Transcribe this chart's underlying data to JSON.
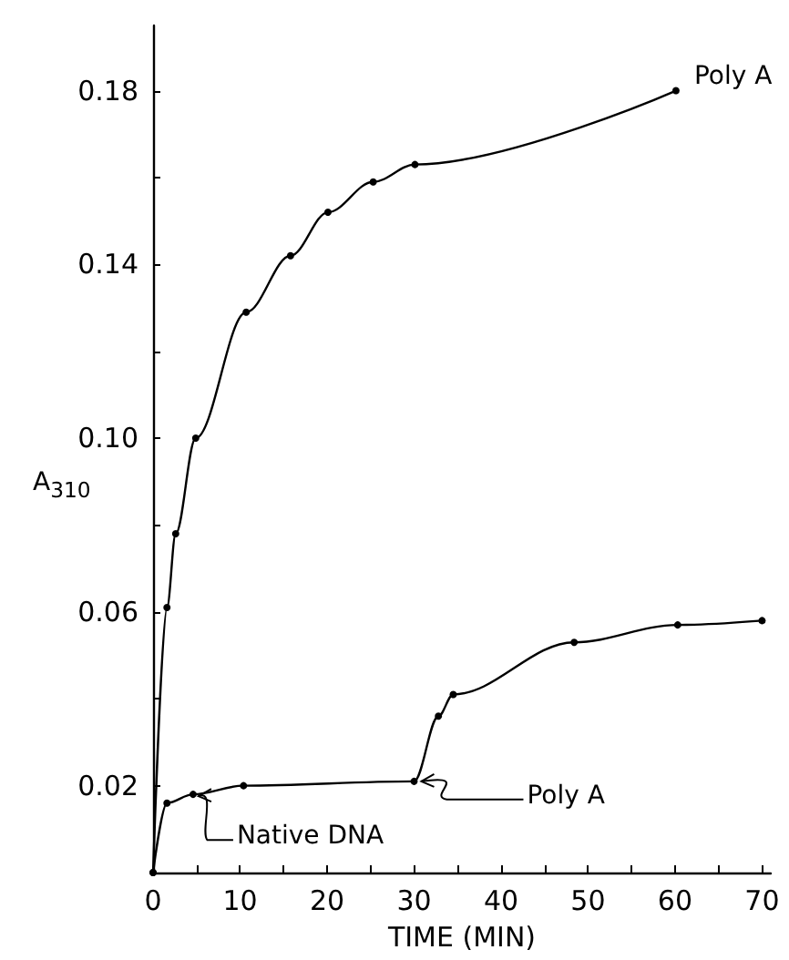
{
  "chart_data": {
    "type": "line",
    "xlabel": "TIME (MIN)",
    "ylabel": "A$_{310}$",
    "series": [
      {
        "name": "Poly A",
        "color": "#000000",
        "x": [
          0,
          1.6,
          2.6,
          4.9,
          10.7,
          15.8,
          20.1,
          25.3,
          30.1,
          60.1
        ],
        "values": [
          0,
          0.061,
          0.078,
          0.1,
          0.129,
          0.142,
          0.152,
          0.159,
          0.163,
          0.18
        ]
      },
      {
        "name": "Native DNA",
        "color": "#000000",
        "x": [
          0,
          1.6,
          4.6,
          10.4,
          30,
          32.8,
          34.5,
          48.4,
          60.3,
          70
        ],
        "values": [
          0,
          0.016,
          0.018,
          0.02,
          0.021,
          0.036,
          0.041,
          0.053,
          0.057,
          0.058
        ]
      }
    ],
    "annotations": [
      {
        "text": "Poly A",
        "x": 30,
        "y": 0.021
      }
    ],
    "xlim": [
      0,
      71
    ],
    "ylim": [
      0,
      0.195
    ],
    "xticks": [
      0,
      {
        "value": 5,
        "label": null
      },
      10,
      {
        "value": 15,
        "label": null
      },
      20,
      {
        "value": 25,
        "label": null
      },
      30,
      {
        "value": 35,
        "label": null
      },
      40,
      {
        "value": 45,
        "label": null
      },
      50,
      {
        "value": 55,
        "label": null
      },
      60,
      {
        "value": 65,
        "label": null
      },
      70
    ],
    "yticks": [
      {
        "value": 0.02,
        "label": "0.02"
      },
      {
        "value": 0.04,
        "label": null
      },
      {
        "value": 0.06,
        "label": "0.06"
      },
      {
        "value": 0.08,
        "label": null
      },
      {
        "value": 0.1,
        "label": "0.10"
      },
      {
        "value": 0.12,
        "label": null
      },
      {
        "value": 0.14,
        "label": "0.14"
      },
      {
        "value": 0.16,
        "label": null
      },
      {
        "value": 0.18,
        "label": "0.18"
      }
    ],
    "grid": false,
    "legend": false,
    "marker": "circle",
    "line_style": "solid"
  }
}
